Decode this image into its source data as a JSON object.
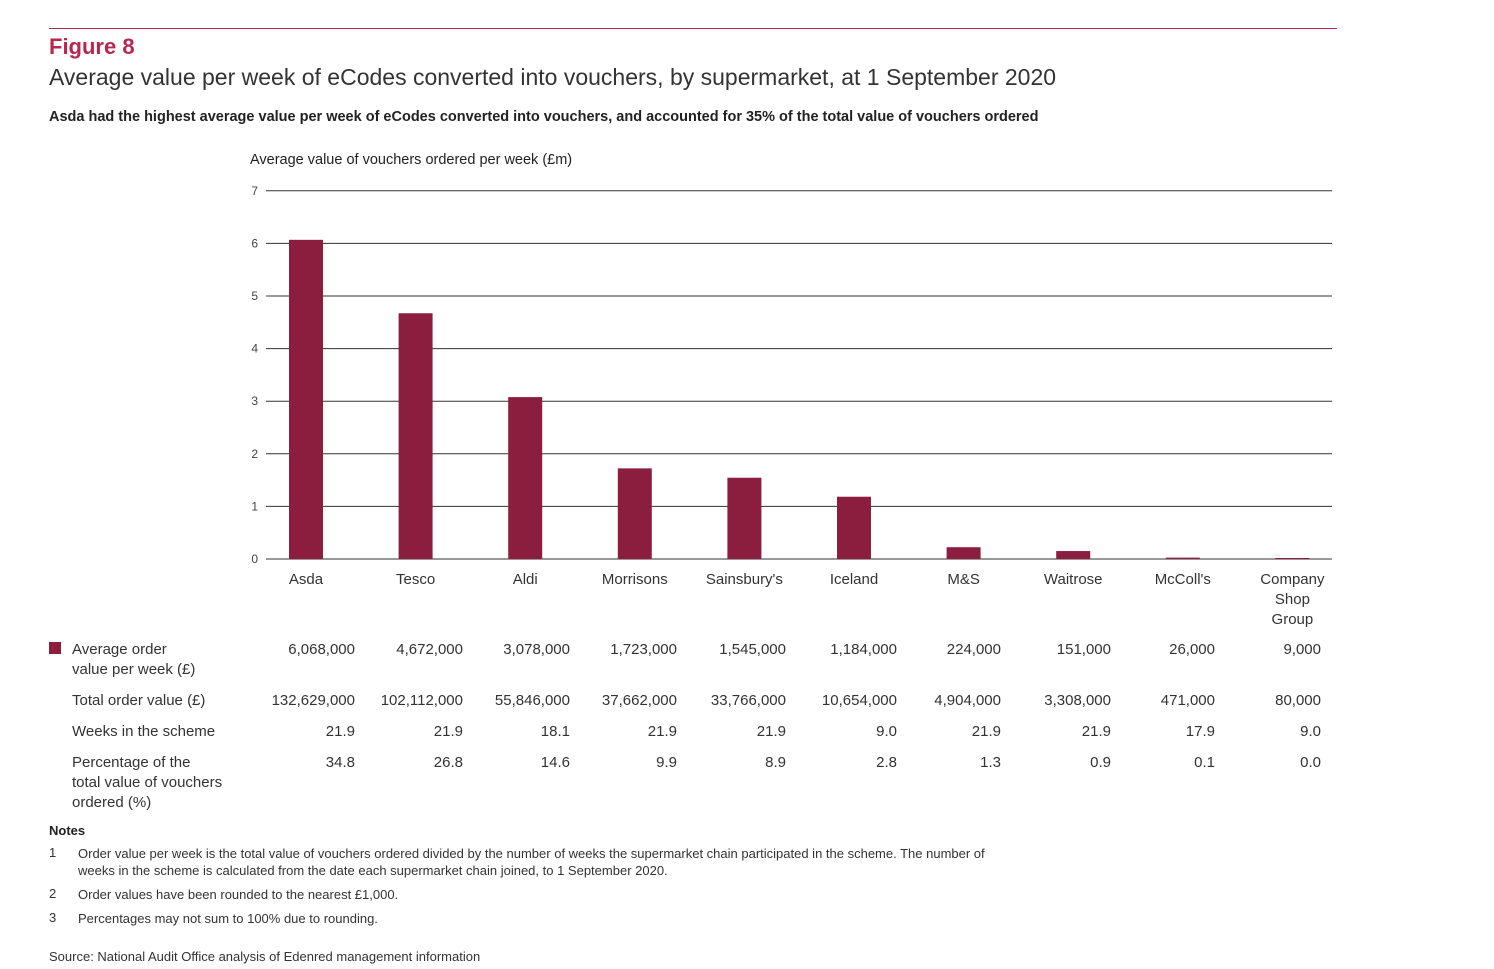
{
  "figure": {
    "label": "Figure 8",
    "title": "Average value per week of eCodes converted into vouchers, by supermarket, at 1 September 2020",
    "subtitle": "Asda had the highest average value per week of eCodes converted into vouchers, and accounted for 35% of the total value of vouchers ordered"
  },
  "chart_data": {
    "type": "bar",
    "ylabel": "Average value of vouchers ordered per week (£m)",
    "ylim": [
      0,
      7
    ],
    "yticks": [
      "0",
      "1",
      "2",
      "3",
      "4",
      "5",
      "6",
      "7"
    ],
    "grid": true,
    "categories": [
      [
        "Asda"
      ],
      [
        "Tesco"
      ],
      [
        "Aldi"
      ],
      [
        "Morrisons"
      ],
      [
        "Sainsbury's"
      ],
      [
        "Iceland"
      ],
      [
        "M&S"
      ],
      [
        "Waitrose"
      ],
      [
        "McColl's"
      ],
      [
        "Company",
        "Shop",
        "Group"
      ]
    ],
    "values": [
      6.068,
      4.672,
      3.078,
      1.723,
      1.545,
      1.184,
      0.224,
      0.151,
      0.026,
      0.009
    ],
    "bar_color": "#8b1e3f"
  },
  "table": {
    "rows": [
      {
        "label": [
          "Average order",
          "value per week (£)"
        ],
        "values": [
          "6,068,000",
          "4,672,000",
          "3,078,000",
          "1,723,000",
          "1,545,000",
          "1,184,000",
          "224,000",
          "151,000",
          "26,000",
          "9,000"
        ]
      },
      {
        "label": [
          "Total order value (£)"
        ],
        "values": [
          "132,629,000",
          "102,112,000",
          "55,846,000",
          "37,662,000",
          "33,766,000",
          "10,654,000",
          "4,904,000",
          "3,308,000",
          "471,000",
          "80,000"
        ]
      },
      {
        "label": [
          "Weeks in the scheme"
        ],
        "values": [
          "21.9",
          "21.9",
          "18.1",
          "21.9",
          "21.9",
          "9.0",
          "21.9",
          "21.9",
          "17.9",
          "9.0"
        ]
      },
      {
        "label": [
          "Percentage of the",
          "total value of vouchers",
          "ordered (%)"
        ],
        "values": [
          "34.8",
          "26.8",
          "14.6",
          "9.9",
          "8.9",
          "2.8",
          "1.3",
          "0.9",
          "0.1",
          "0.0"
        ]
      }
    ]
  },
  "notes": {
    "title": "Notes",
    "items": [
      {
        "num": "1",
        "text": [
          "Order value per week is the total value of vouchers ordered divided by the number of weeks the supermarket chain participated in the scheme. The number of",
          "weeks in the scheme is calculated from the date each supermarket chain joined, to 1 September 2020."
        ]
      },
      {
        "num": "2",
        "text": [
          "Order values have been rounded to the nearest £1,000."
        ]
      },
      {
        "num": "3",
        "text": [
          "Percentages may not sum to 100% due to rounding."
        ]
      }
    ]
  },
  "source": "Source: National Audit Office analysis of Edenred management information"
}
